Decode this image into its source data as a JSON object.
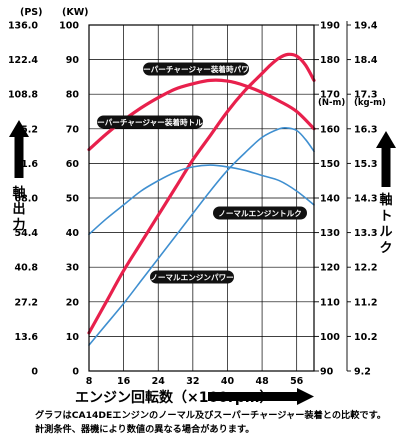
{
  "chart_data": {
    "type": "line",
    "x_ticks": [
      8,
      16,
      24,
      32,
      40,
      48,
      56
    ],
    "xlim": [
      8,
      60
    ],
    "xlabel": "エンジン回転数（×100rpm）",
    "left_axes": {
      "ps": {
        "unit": "(PS)",
        "ticks": [
          "136.0",
          "122.4",
          "108.8",
          "95.2",
          "81.6",
          "68.0",
          "54.4",
          "40.8",
          "27.2",
          "13.6",
          "0"
        ]
      },
      "kw": {
        "unit": "(KW)",
        "ticks": [
          "100",
          "90",
          "80",
          "70",
          "60",
          "50",
          "40",
          "30",
          "20",
          "10",
          "0"
        ],
        "ylim": [
          0,
          100
        ]
      },
      "label": "軸出力"
    },
    "right_axes": {
      "nm": {
        "unit": "(N-m)",
        "ticks": [
          "190",
          "180",
          "170",
          "160",
          "150",
          "140",
          "130",
          "120",
          "110",
          "100",
          "90"
        ],
        "ylim": [
          90,
          190
        ]
      },
      "kgm": {
        "unit": "(kg-m)",
        "ticks": [
          "19.4",
          "18.4",
          "17.3",
          "16.3",
          "15.3",
          "14.3",
          "13.3",
          "12.2",
          "11.2",
          "10.2",
          "9.2"
        ]
      },
      "label": "軸トルク"
    },
    "series": [
      {
        "name": "スーパーチャージャー装着時パワー",
        "axis": "kw",
        "color": "#e8204c",
        "width": 3.2,
        "x": [
          8,
          12,
          16,
          20,
          24,
          28,
          32,
          36,
          40,
          44,
          48,
          50,
          52,
          54,
          56,
          58,
          60
        ],
        "y": [
          11,
          20,
          29,
          37,
          45,
          53,
          61,
          68,
          75,
          81,
          86,
          88.5,
          90.5,
          91.5,
          91,
          88.5,
          84
        ]
      },
      {
        "name": "スーパーチャージャー装着時トルク",
        "axis": "nm",
        "color": "#e8204c",
        "width": 3.2,
        "x": [
          8,
          12,
          16,
          20,
          24,
          28,
          32,
          36,
          40,
          44,
          48,
          52,
          56,
          60
        ],
        "y": [
          154,
          158.5,
          162.5,
          166,
          169,
          171.5,
          173,
          174,
          173.8,
          172.5,
          170.5,
          168,
          165,
          160
        ]
      },
      {
        "name": "ノーマルエンジントルク",
        "axis": "nm",
        "color": "#3f8fd0",
        "width": 1.6,
        "x": [
          8,
          12,
          16,
          20,
          24,
          28,
          32,
          36,
          40,
          44,
          48,
          52,
          56,
          60
        ],
        "y": [
          129.5,
          134,
          138,
          142,
          145,
          147.5,
          149,
          149.5,
          149,
          148,
          146.5,
          145,
          142,
          138
        ]
      },
      {
        "name": "ノーマルエンジンパワー",
        "axis": "kw",
        "color": "#3f8fd0",
        "width": 1.6,
        "x": [
          8,
          12,
          16,
          20,
          24,
          28,
          32,
          36,
          40,
          44,
          48,
          52,
          54,
          56,
          58,
          60
        ],
        "y": [
          7.5,
          13.5,
          19.5,
          26,
          32.5,
          39,
          45.5,
          52,
          58,
          63,
          67.5,
          70,
          70.2,
          69.5,
          67,
          63.5
        ]
      }
    ],
    "grid": true,
    "legend": "inline-labels"
  },
  "footnote": [
    "グラフはCA14DEエンジンのノーマル及びスーパーチャージャー装着との比較です。",
    "計測条件、器機により数値の異なる場合があります。"
  ]
}
